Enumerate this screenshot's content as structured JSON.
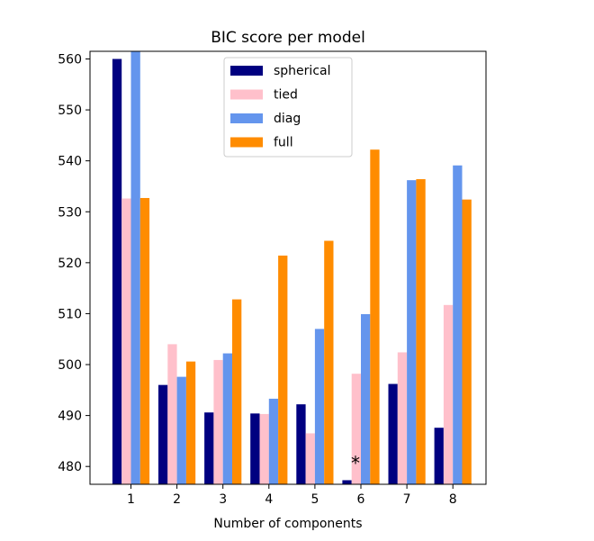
{
  "chart_data": {
    "type": "bar",
    "title": "BIC score per model",
    "xlabel": "Number of components",
    "ylabel": "",
    "categories": [
      "1",
      "2",
      "3",
      "4",
      "5",
      "6",
      "7",
      "8"
    ],
    "ylim": [
      476.5,
      561.5
    ],
    "yticks": [
      "480",
      "490",
      "500",
      "510",
      "520",
      "530",
      "540",
      "550",
      "560"
    ],
    "grid": false,
    "legend_position": "top-center",
    "series": [
      {
        "name": "spherical",
        "color": "#000080",
        "values": [
          560.0,
          496.0,
          490.6,
          490.4,
          492.2,
          477.3,
          496.2,
          487.6
        ]
      },
      {
        "name": "tied",
        "color": "#ffc0cb",
        "values": [
          532.6,
          504.0,
          500.9,
          490.3,
          486.5,
          498.2,
          502.4,
          511.7
        ]
      },
      {
        "name": "diag",
        "color": "#6495ed",
        "values": [
          561.5,
          497.6,
          502.2,
          493.3,
          507.0,
          509.9,
          536.2,
          539.1
        ]
      },
      {
        "name": "full",
        "color": "#ff8c00",
        "values": [
          532.7,
          500.6,
          512.8,
          521.4,
          524.3,
          542.2,
          536.4,
          532.4
        ]
      }
    ],
    "annotations": [
      {
        "text": "*",
        "category": "6",
        "value": 480.5
      }
    ]
  }
}
